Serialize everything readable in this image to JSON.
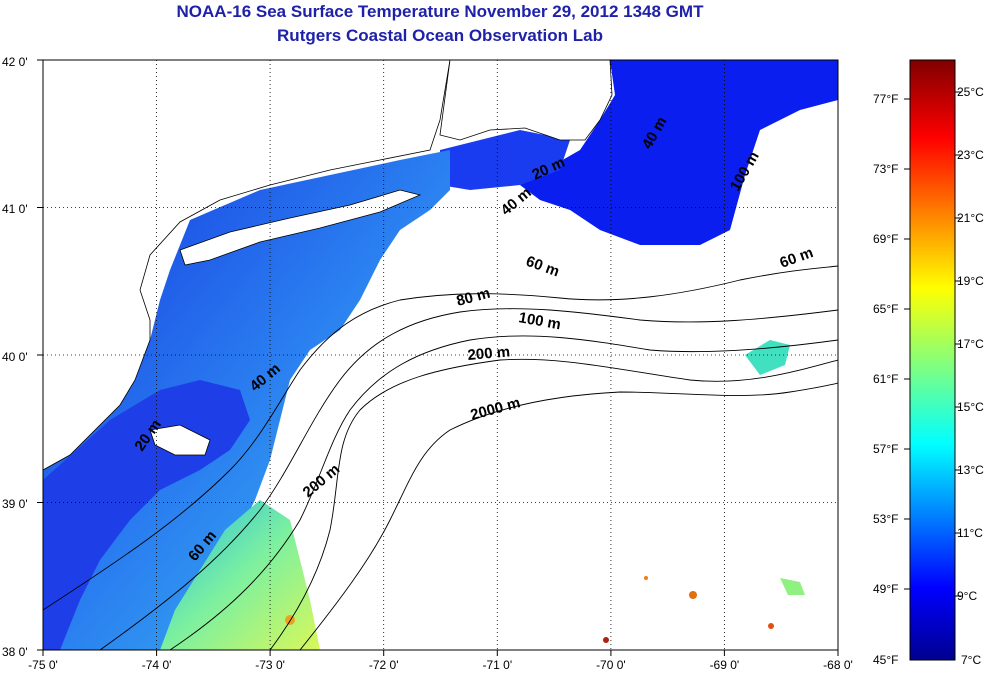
{
  "header": {
    "title": "NOAA-16 Sea Surface Temperature November 29, 2012 1348 GMT",
    "subtitle": "Rutgers Coastal Ocean Observation Lab"
  },
  "map": {
    "lon_range": [
      -75,
      -68
    ],
    "lat_range": [
      38,
      42
    ],
    "lon_ticks": [
      "-75 0'",
      "-74 0'",
      "-73 0'",
      "-72 0'",
      "-71 0'",
      "-70 0'",
      "-69 0'",
      "-68 0'"
    ],
    "lat_ticks": [
      "38 0'",
      "39 0'",
      "40 0'",
      "41 0'",
      "42 0'"
    ],
    "grid": "dotted",
    "isobath_labels": [
      "40 m",
      "100 m",
      "20 m",
      "40 m",
      "60 m",
      "60 m",
      "80 m",
      "100 m",
      "200 m",
      "2000 m",
      "40 m",
      "200 m",
      "20 m",
      "60 m"
    ],
    "colors": {
      "land": "#ffffff",
      "clouds": "#ffffff",
      "title": "#1f22a8"
    }
  },
  "colorbar": {
    "fahrenheit_labels": [
      "77°F",
      "73°F",
      "69°F",
      "65°F",
      "61°F",
      "57°F",
      "53°F",
      "49°F",
      "45°F"
    ],
    "celsius_labels": [
      "25°C",
      "23°C",
      "21°C",
      "19°C",
      "17°C",
      "15°C",
      "13°C",
      "11°C",
      "9°C",
      "7°C"
    ],
    "range_c": [
      7,
      26
    ],
    "colormap": "jet"
  }
}
